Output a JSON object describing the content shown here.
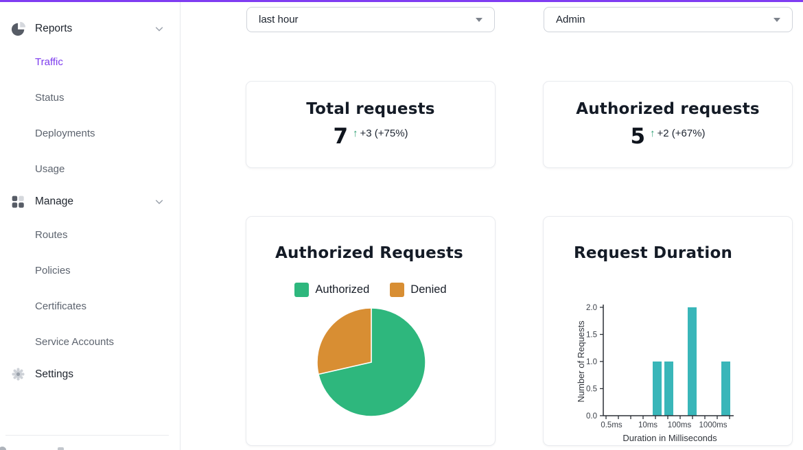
{
  "icons": {
    "arrow_up": "↑"
  },
  "topbar": {
    "time_range": "last hour",
    "role": "Admin"
  },
  "sidebar": {
    "active_item": "Traffic",
    "groups": [
      {
        "label": "Reports",
        "icon": "pie-chart-icon",
        "items": [
          "Traffic",
          "Status",
          "Deployments",
          "Usage"
        ]
      },
      {
        "label": "Manage",
        "icon": "grid-icon",
        "items": [
          "Routes",
          "Policies",
          "Certificates",
          "Service Accounts"
        ]
      }
    ],
    "settings_label": "Settings"
  },
  "stats": [
    {
      "title": "Total requests",
      "value": "7",
      "delta": "+3 (+75%)",
      "direction": "up"
    },
    {
      "title": "Authorized requests",
      "value": "5",
      "delta": "+2 (+67%)",
      "direction": "up"
    }
  ],
  "chart_data": [
    {
      "type": "pie",
      "title": "Authorized Requests",
      "labels": [
        "Authorized",
        "Denied"
      ],
      "values": [
        5,
        2
      ],
      "colors": [
        "#2eb77d",
        "#d88e33"
      ],
      "legend_position": "top",
      "start_angle": "top-clockwise"
    },
    {
      "type": "bar",
      "title": "Request Duration",
      "xlabel": "Duration in Milliseconds",
      "ylabel": "Number of Requests",
      "x_scale": "log",
      "x_tick_labels": [
        "0.5ms",
        "10ms",
        "100ms",
        "1000ms"
      ],
      "y_ticks": [
        "0.0",
        "0.5",
        "1.0",
        "1.5",
        "2.0"
      ],
      "values": [
        1,
        1,
        2,
        1
      ],
      "ylim": [
        0,
        2
      ],
      "bar_color": "#39b6b9",
      "grid": false
    }
  ]
}
